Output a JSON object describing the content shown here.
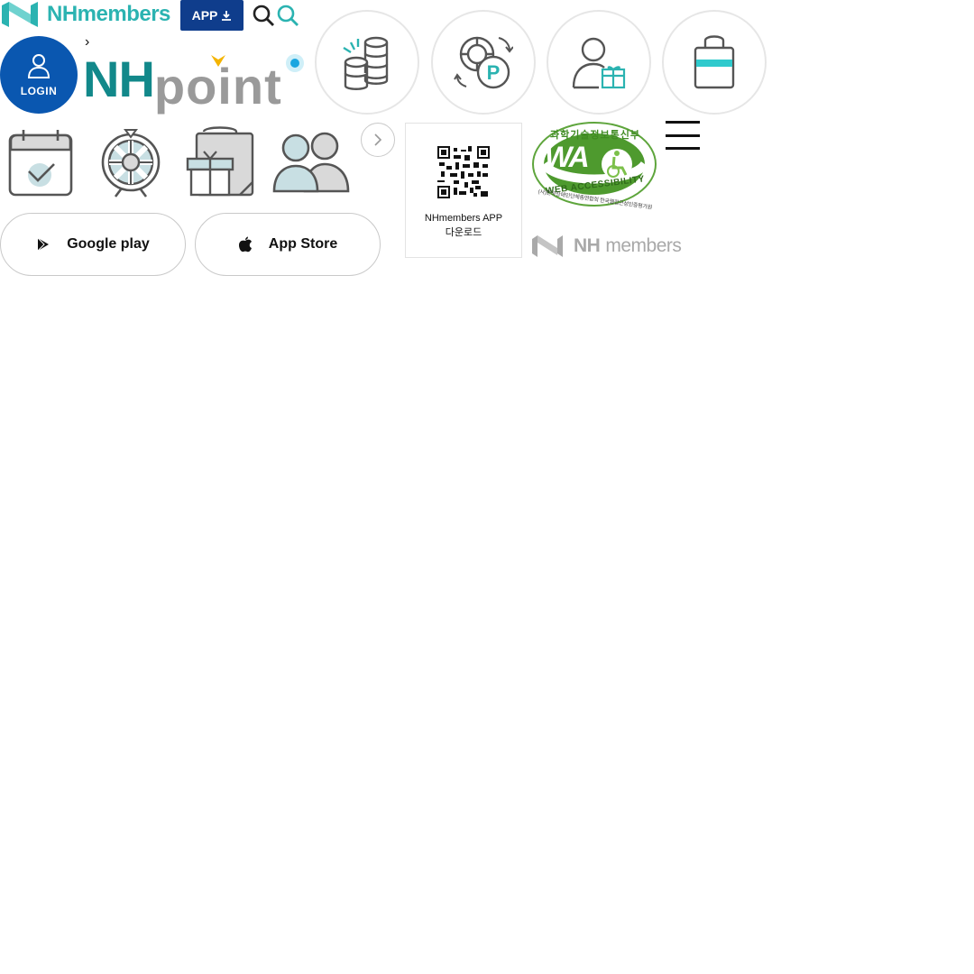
{
  "header": {
    "brand": "NHmembers",
    "app_button": "APP",
    "icons": [
      "nh-logo-icon",
      "download-icon",
      "search-icon",
      "search-icon"
    ]
  },
  "login": {
    "label": "LOGIN"
  },
  "point_brand": {
    "nh": "NH",
    "point": "point"
  },
  "circle_menu": [
    {
      "icon": "coins-icon"
    },
    {
      "icon": "point-exchange-icon"
    },
    {
      "icon": "member-gift-icon"
    },
    {
      "icon": "shopping-bag-icon"
    }
  ],
  "square_menu": [
    {
      "icon": "calendar-check-icon"
    },
    {
      "icon": "roulette-icon"
    },
    {
      "icon": "gift-bag-icon"
    },
    {
      "icon": "people-icon"
    }
  ],
  "stores": {
    "google": "Google play",
    "apple": "App Store"
  },
  "qr": {
    "line1": "NHmembers APP",
    "line2": "다운로드"
  },
  "wa_mark": {
    "top": "과학기술정보통신부",
    "center": "WA",
    "ring": "WEB ACCESSIBILITY",
    "bottom": "(사)한국장애인단체총연합회 한국웹접근성인증평가원"
  },
  "footer_brand": {
    "nh": "NH",
    "members": "members"
  },
  "colors": {
    "teal": "#2bb3b1",
    "navy": "#0f3d8c",
    "login_blue": "#0a57b0",
    "dark_teal": "#12888a",
    "grey": "#9a9a9a"
  }
}
